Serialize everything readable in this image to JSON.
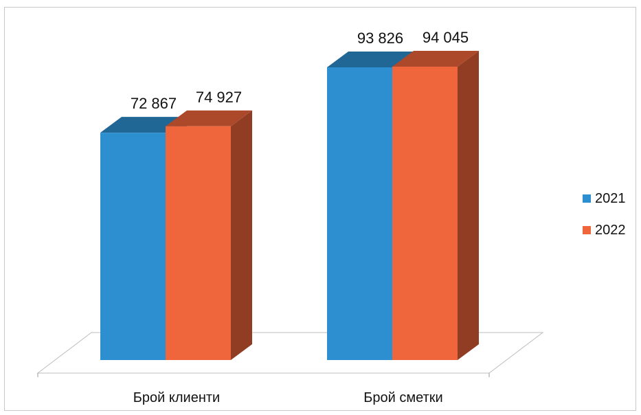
{
  "chart_data": {
    "type": "bar",
    "categories": [
      "Брой клиенти",
      "Брой сметки"
    ],
    "series": [
      {
        "name": "2021",
        "values": [
          72867,
          93826
        ],
        "labels": [
          "72 867",
          "93 826"
        ],
        "color": "#2e8fd0"
      },
      {
        "name": "2022",
        "values": [
          74927,
          94045
        ],
        "labels": [
          "74 927",
          "94 045"
        ],
        "color": "#f0663c"
      }
    ],
    "legend_position": "right",
    "grid": false,
    "style": "3d-column"
  }
}
